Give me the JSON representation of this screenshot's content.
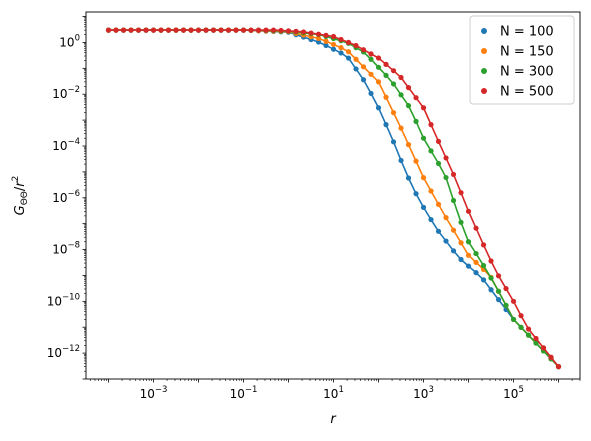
{
  "chart_data": {
    "type": "scatter",
    "title": "",
    "xscale": "log",
    "yscale": "log",
    "xlim": [
      3.16e-05,
      3000000
    ],
    "ylim": [
      1e-13,
      15
    ],
    "xlabel": "r",
    "ylabel": {
      "base": "G",
      "subscript": "ΘΘ",
      "suffix": "/r",
      "superscript": "2"
    },
    "grid": false,
    "legend": {
      "placement": "top-right",
      "entries": [
        "N = 100",
        "N = 150",
        "N = 300",
        "N = 500"
      ]
    },
    "x_ticks": [
      {
        "base": "10",
        "exp": "−3",
        "value": 0.001
      },
      {
        "base": "10",
        "exp": "−1",
        "value": 0.1
      },
      {
        "base": "10",
        "exp": "1",
        "value": 10
      },
      {
        "base": "10",
        "exp": "3",
        "value": 1000
      },
      {
        "base": "10",
        "exp": "5",
        "value": 100000
      }
    ],
    "y_ticks": [
      {
        "base": "10",
        "exp": "0",
        "value": 1
      },
      {
        "base": "10",
        "exp": "−2",
        "value": 0.01
      },
      {
        "base": "10",
        "exp": "−4",
        "value": 0.0001
      },
      {
        "base": "10",
        "exp": "−6",
        "value": 1e-06
      },
      {
        "base": "10",
        "exp": "−8",
        "value": 1e-08
      },
      {
        "base": "10",
        "exp": "−10",
        "value": 1e-10
      },
      {
        "base": "10",
        "exp": "−12",
        "value": 1e-12
      }
    ],
    "series": [
      {
        "name": "N = 100",
        "color": "#1f77b4",
        "x_min": 0.0001,
        "x_max": 1000000,
        "n_points": 61,
        "line_points": [
          [
            0.0001,
            3.0
          ],
          [
            0.1,
            3.0
          ],
          [
            1,
            2.5
          ],
          [
            5,
            1.0
          ],
          [
            20,
            0.3
          ],
          [
            50,
            0.03
          ],
          [
            100,
            0.003
          ],
          [
            200,
            0.0002
          ],
          [
            400,
            1e-05
          ],
          [
            800,
            8e-07
          ],
          [
            2000,
            6e-08
          ],
          [
            6000,
            5e-09
          ],
          [
            20000,
            8e-10
          ],
          [
            100000,
            2e-11
          ],
          [
            1000000,
            3e-13
          ]
        ]
      },
      {
        "name": "N = 150",
        "color": "#ff7f0e",
        "x_min": 0.0001,
        "x_max": 1000000,
        "n_points": 61,
        "line_points": [
          [
            0.0001,
            3.0
          ],
          [
            0.1,
            3.0
          ],
          [
            1,
            2.6
          ],
          [
            5,
            1.4
          ],
          [
            20,
            0.5
          ],
          [
            100,
            0.03
          ],
          [
            300,
            0.0006
          ],
          [
            1000,
            6e-06
          ],
          [
            3000,
            2e-07
          ],
          [
            10000,
            6e-09
          ],
          [
            30000,
            1e-09
          ],
          [
            100000,
            2e-11
          ],
          [
            1000000,
            3e-13
          ]
        ]
      },
      {
        "name": "N = 300",
        "color": "#2ca02c",
        "x_min": 0.0001,
        "x_max": 1000000,
        "n_points": 61,
        "line_points": [
          [
            0.0001,
            3.0
          ],
          [
            0.2,
            3.0
          ],
          [
            1,
            2.7
          ],
          [
            5,
            2.0
          ],
          [
            20,
            1.0
          ],
          [
            50,
            0.4
          ],
          [
            200,
            0.03
          ],
          [
            500,
            0.003
          ],
          [
            1000,
            0.0002
          ],
          [
            3000,
            8e-06
          ],
          [
            6000,
            2e-07
          ],
          [
            10000,
            2e-08
          ],
          [
            20000,
            3e-09
          ],
          [
            40000,
            4e-10
          ],
          [
            100000,
            2e-11
          ],
          [
            1000000,
            3e-13
          ]
        ]
      },
      {
        "name": "N = 500",
        "color": "#d62728",
        "x_min": 0.0001,
        "x_max": 1000000,
        "n_points": 61,
        "line_points": [
          [
            0.0001,
            3.0
          ],
          [
            0.5,
            3.0
          ],
          [
            2,
            2.6
          ],
          [
            10,
            1.7
          ],
          [
            30,
            0.8
          ],
          [
            100,
            0.25
          ],
          [
            300,
            0.05
          ],
          [
            1000,
            0.003
          ],
          [
            2000,
            0.0002
          ],
          [
            5000,
            6e-06
          ],
          [
            10000,
            3e-07
          ],
          [
            20000,
            2e-08
          ],
          [
            40000,
            1.5e-09
          ],
          [
            100000,
            1e-10
          ],
          [
            200000,
            1e-11
          ],
          [
            1000000,
            3e-13
          ]
        ]
      }
    ]
  }
}
